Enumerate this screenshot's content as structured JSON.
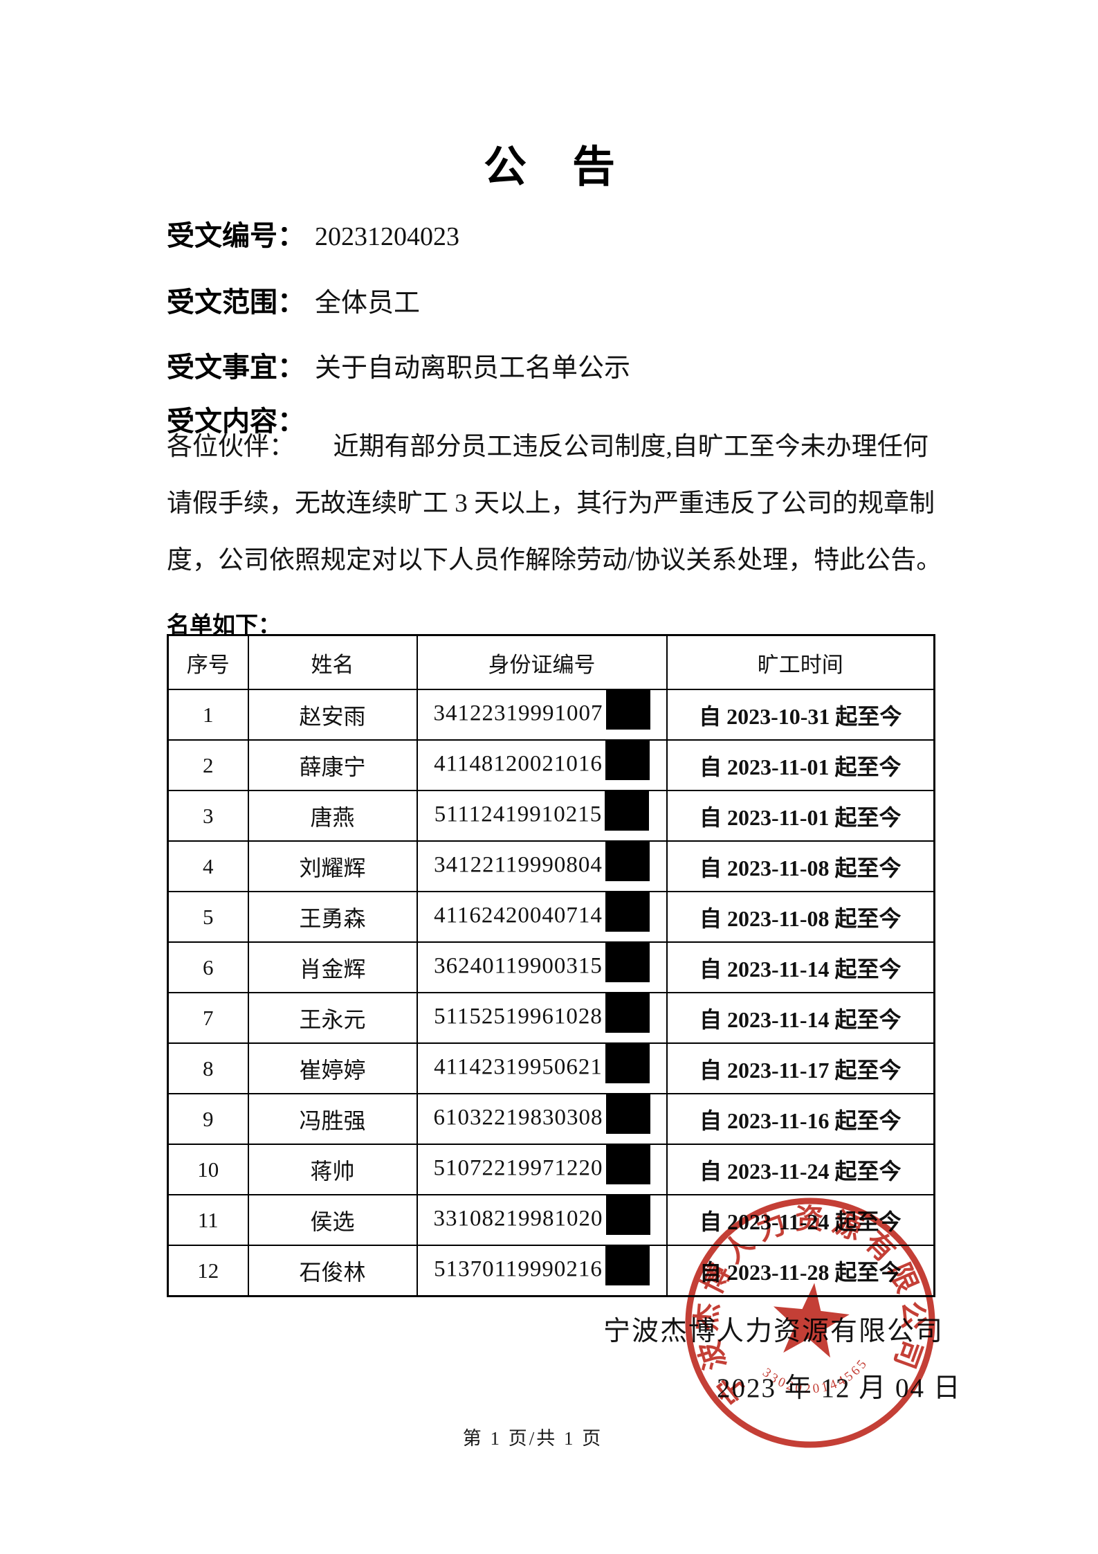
{
  "page": {
    "title": "公　告",
    "meta": [
      {
        "label": "受文编号：",
        "value": "20231204023"
      },
      {
        "label": "受文范围：",
        "value": "全体员工"
      },
      {
        "label": "受文事宜：",
        "value": "关于自动离职员工名单公示"
      },
      {
        "label": "受文内容：",
        "value": ""
      }
    ],
    "body_lines": [
      "各位伙伴：　　近期有部分员工违反公司制度,自旷工至今未办理任何",
      "请假手续，无故连续旷工 3 天以上，其行为严重违反了公司的规章制",
      "度，公司依照规定对以下人员作解除劳动/协议关系处理，特此公告。"
    ],
    "list_intro": "名单如下：",
    "table": {
      "headers": [
        "序号",
        "姓名",
        "身份证编号",
        "旷工时间"
      ],
      "rows": [
        {
          "no": "1",
          "name": "赵安雨",
          "id": "34122319991007",
          "redacted": true,
          "absence": "自 2023-10-31 起至今"
        },
        {
          "no": "2",
          "name": "薛康宁",
          "id": "41148120021016",
          "redacted": true,
          "absence": "自 2023-11-01 起至今"
        },
        {
          "no": "3",
          "name": "唐燕",
          "id": "51112419910215",
          "redacted": true,
          "absence": "自 2023-11-01 起至今"
        },
        {
          "no": "4",
          "name": "刘耀辉",
          "id": "34122119990804",
          "redacted": true,
          "absence": "自 2023-11-08 起至今"
        },
        {
          "no": "5",
          "name": "王勇森",
          "id": "41162420040714",
          "redacted": true,
          "absence": "自 2023-11-08 起至今"
        },
        {
          "no": "6",
          "name": "肖金辉",
          "id": "36240119900315",
          "redacted": true,
          "absence": "自 2023-11-14 起至今"
        },
        {
          "no": "7",
          "name": "王永元",
          "id": "51152519961028",
          "redacted": true,
          "absence": "自 2023-11-14 起至今"
        },
        {
          "no": "8",
          "name": "崔婷婷",
          "id": "41142319950621",
          "redacted": true,
          "absence": "自 2023-11-17 起至今"
        },
        {
          "no": "9",
          "name": "冯胜强",
          "id": "61032219830308",
          "redacted": true,
          "absence": "自 2023-11-16 起至今"
        },
        {
          "no": "10",
          "name": "蒋帅",
          "id": "51072219971220",
          "redacted": true,
          "absence": "自 2023-11-24 起至今"
        },
        {
          "no": "11",
          "name": "侯选",
          "id": "33108219981020",
          "redacted": true,
          "absence": "自 2023-11-24 起至今"
        },
        {
          "no": "12",
          "name": "石俊林",
          "id": "51370119990216",
          "redacted": true,
          "absence": "自 2023-11-28 起至今"
        }
      ]
    },
    "signature": {
      "company": "宁波杰博人力资源有限公司",
      "date": "2023 年 12 月 04 日"
    },
    "page_footer": "第 1 页/共 1 页",
    "stamp": {
      "ring_text": "宁波杰博人力资源有限公司",
      "serial": "3302020144565",
      "color": "#bf2e25"
    }
  }
}
